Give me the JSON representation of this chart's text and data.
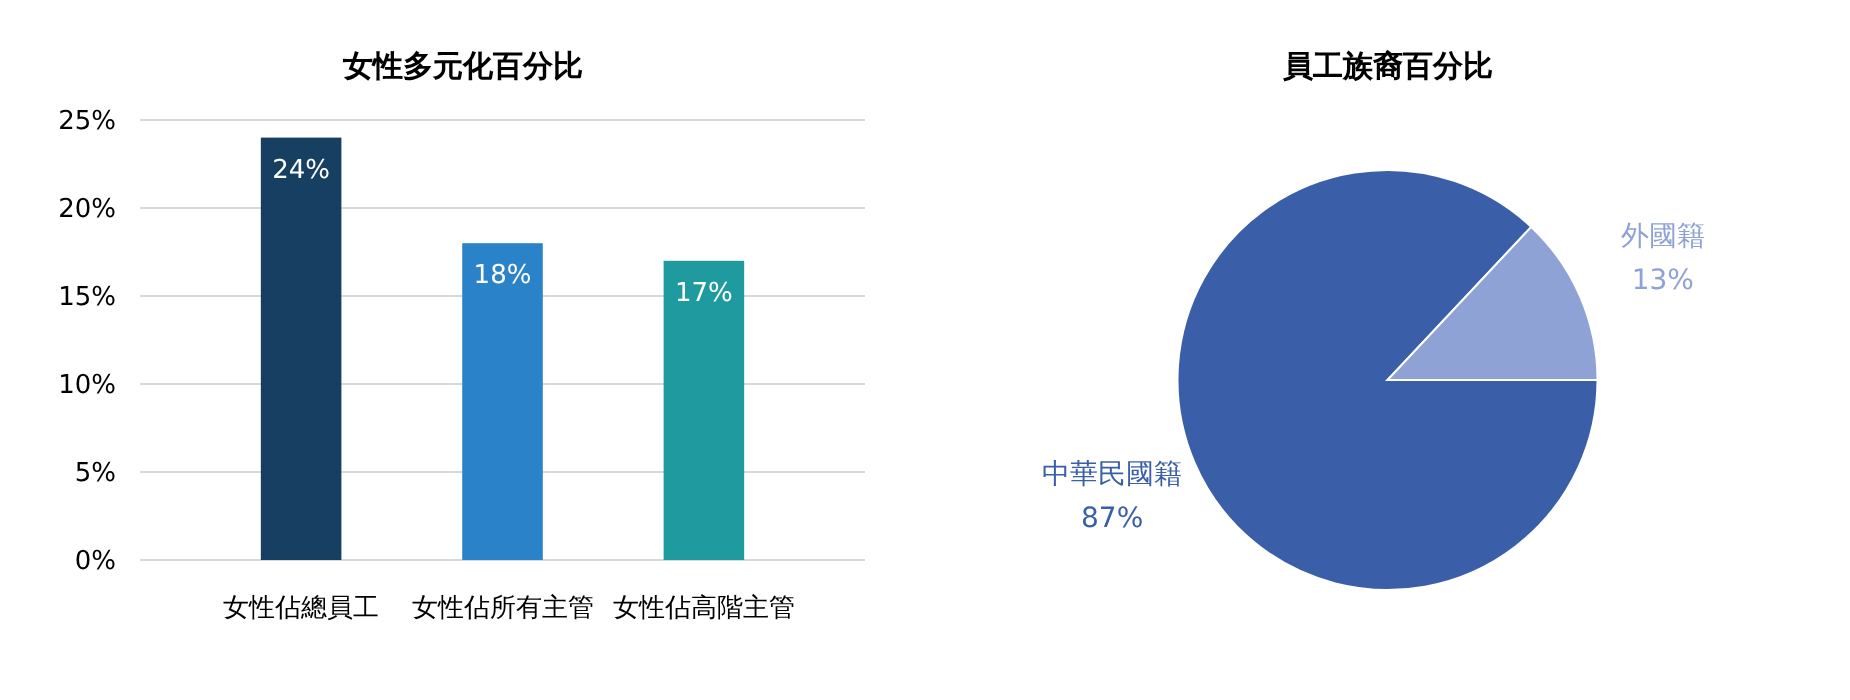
{
  "chart_data": [
    {
      "type": "bar",
      "title": "女性多元化百分比",
      "categories": [
        "女性佔總員工",
        "女性佔所有主管",
        "女性佔高階主管"
      ],
      "values": [
        24,
        18,
        17
      ],
      "colors": [
        "#173f62",
        "#2a82c9",
        "#1f9ba0"
      ],
      "value_labels": [
        "24%",
        "18%",
        "17%"
      ],
      "ylim": [
        0,
        25
      ],
      "yticks": [
        {
          "value": 0,
          "label": "0%"
        },
        {
          "value": 5,
          "label": "5%"
        },
        {
          "value": 10,
          "label": "10%"
        },
        {
          "value": 15,
          "label": "15%"
        },
        {
          "value": 20,
          "label": "20%"
        },
        {
          "value": 25,
          "label": "25%"
        }
      ],
      "grid": "y"
    },
    {
      "type": "pie",
      "title": "員工族裔百分比",
      "categories": [
        "中華民國籍",
        "外國籍"
      ],
      "values": [
        87,
        13
      ],
      "colors": [
        "#3a5fa8",
        "#8fa2d6"
      ],
      "value_labels": [
        "87%",
        "13%"
      ]
    }
  ]
}
